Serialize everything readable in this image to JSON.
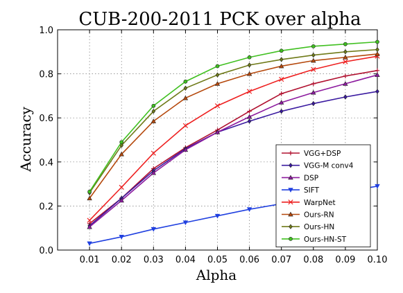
{
  "chart_data": {
    "type": "line",
    "title": "CUB-200-2011 PCK over alpha",
    "xlabel": "Alpha",
    "ylabel": "Accuracy",
    "x": [
      0.01,
      0.02,
      0.03,
      0.04,
      0.05,
      0.06,
      0.07,
      0.08,
      0.09,
      0.1
    ],
    "x_tick_labels": [
      "0.01",
      "0.02",
      "0.03",
      "0.04",
      "0.05",
      "0.06",
      "0.07",
      "0.08",
      "0.09",
      "0.10"
    ],
    "xlim": [
      0.0,
      0.1
    ],
    "ylim": [
      0.0,
      1.0
    ],
    "y_ticks": [
      0.0,
      0.2,
      0.4,
      0.6,
      0.8,
      1.0
    ],
    "y_tick_labels": [
      "0.0",
      "0.2",
      "0.4",
      "0.6",
      "0.8",
      "1.0"
    ],
    "grid": true,
    "legend_position": "lower-right",
    "series": [
      {
        "name": "VGG+DSP",
        "color": "#b0102f",
        "marker": "plus",
        "values": [
          0.12,
          0.235,
          0.37,
          0.465,
          0.545,
          0.63,
          0.71,
          0.755,
          0.79,
          0.815
        ]
      },
      {
        "name": "VGG-M conv4",
        "color": "#3a1aa0",
        "marker": "diamond",
        "values": [
          0.11,
          0.235,
          0.36,
          0.46,
          0.535,
          0.585,
          0.63,
          0.665,
          0.695,
          0.72
        ]
      },
      {
        "name": "DSP",
        "color": "#8c1a9e",
        "marker": "triangle-up",
        "values": [
          0.105,
          0.225,
          0.35,
          0.455,
          0.535,
          0.605,
          0.67,
          0.715,
          0.755,
          0.795
        ]
      },
      {
        "name": "SIFT",
        "color": "#2040e0",
        "marker": "triangle-down",
        "values": [
          0.03,
          0.06,
          0.095,
          0.125,
          0.155,
          0.185,
          0.21,
          0.235,
          0.265,
          0.29
        ]
      },
      {
        "name": "WarpNet",
        "color": "#ee2020",
        "marker": "x",
        "values": [
          0.135,
          0.285,
          0.44,
          0.565,
          0.655,
          0.72,
          0.775,
          0.82,
          0.855,
          0.88
        ]
      },
      {
        "name": "Ours-RN",
        "color": "#b5480c",
        "marker": "triangle-up",
        "values": [
          0.235,
          0.435,
          0.585,
          0.69,
          0.755,
          0.8,
          0.835,
          0.86,
          0.875,
          0.89
        ]
      },
      {
        "name": "Ours-HN",
        "color": "#6f7a18",
        "marker": "diamond",
        "values": [
          0.26,
          0.475,
          0.63,
          0.735,
          0.795,
          0.84,
          0.865,
          0.885,
          0.9,
          0.91
        ]
      },
      {
        "name": "Ours-HN-ST",
        "color": "#40c020",
        "marker": "circle",
        "values": [
          0.265,
          0.49,
          0.655,
          0.765,
          0.835,
          0.875,
          0.905,
          0.925,
          0.935,
          0.945
        ]
      }
    ]
  }
}
